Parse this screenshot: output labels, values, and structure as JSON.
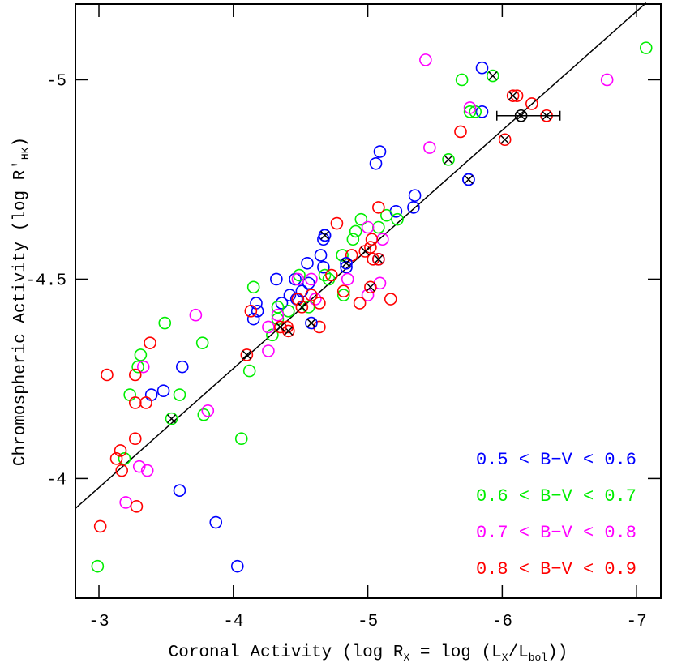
{
  "chart_data": {
    "type": "scatter",
    "x_label": [
      "Coronal Activity (log R",
      "X",
      " = log (L",
      "X",
      "/L",
      "bol",
      "))"
    ],
    "y_label": [
      "Chromospheric Activity (log R′",
      "HK",
      ")"
    ],
    "xlim": [
      -2.825,
      -7.18
    ],
    "ylim": [
      -3.7,
      -5.19
    ],
    "xticks": [
      -3,
      -4,
      -5,
      -6,
      -7
    ],
    "yticks": [
      -5,
      -4.5,
      -4
    ],
    "legend": "lower right",
    "series": [
      {
        "name": "0.5 < B−V < 0.6",
        "color": "#0000ff",
        "marker": "circle",
        "x": [
          -5.85,
          -5.85,
          -5.09,
          -5.06,
          -5.35,
          -5.21,
          -5.34,
          -5.75,
          -5.08,
          -4.84,
          -4.65,
          -4.68,
          -4.67,
          -4.55,
          -4.32,
          -4.42,
          -4.51,
          -4.56,
          -4.47,
          -4.17,
          -4.18,
          -4.15,
          -4.36,
          -3.62,
          -3.48,
          -3.39,
          -3.6,
          -3.87,
          -4.03,
          -4.67,
          -4.46
        ],
        "y": [
          -5.03,
          -4.92,
          -4.82,
          -4.79,
          -4.71,
          -4.67,
          -4.68,
          -4.75,
          -4.55,
          -4.53,
          -4.56,
          -4.61,
          -4.6,
          -4.54,
          -4.5,
          -4.46,
          -4.47,
          -4.49,
          -4.45,
          -4.44,
          -4.42,
          -4.4,
          -4.44,
          -4.28,
          -4.22,
          -4.21,
          -3.97,
          -3.89,
          -3.78,
          -4.53,
          -4.5
        ]
      },
      {
        "name": "0.6 < B−V < 0.7",
        "color": "#00ee00",
        "marker": "circle",
        "x": [
          -7.07,
          -5.7,
          -5.76,
          -5.14,
          -5.22,
          -5.08,
          -4.95,
          -4.91,
          -4.89,
          -4.81,
          -4.68,
          -4.71,
          -4.49,
          -4.15,
          -4.33,
          -4.29,
          -4.12,
          -3.77,
          -3.49,
          -3.31,
          -3.29,
          -3.23,
          -3.6,
          -3.78,
          -4.06,
          -3.19,
          -2.99,
          -4.82,
          -4.41,
          -4.56,
          -4.33,
          -5.8
        ],
        "y": [
          -5.08,
          -5.0,
          -4.92,
          -4.66,
          -4.65,
          -4.63,
          -4.65,
          -4.62,
          -4.6,
          -4.56,
          -4.51,
          -4.5,
          -4.51,
          -4.48,
          -4.43,
          -4.36,
          -4.27,
          -4.34,
          -4.39,
          -4.31,
          -4.28,
          -4.21,
          -4.21,
          -4.16,
          -4.1,
          -4.05,
          -3.78,
          -4.46,
          -4.42,
          -4.43,
          -4.4,
          -4.92
        ]
      },
      {
        "name": "0.7 < B−V < 0.8",
        "color": "#ff00ff",
        "marker": "circle",
        "x": [
          -5.43,
          -6.78,
          -5.76,
          -5.46,
          -5.11,
          -5.0,
          -5.09,
          -5.0,
          -4.61,
          -4.48,
          -4.33,
          -4.26,
          -4.26,
          -3.72,
          -3.33,
          -3.81,
          -3.3,
          -3.36,
          -3.2,
          -4.58,
          -4.85
        ],
        "y": [
          -5.05,
          -5.0,
          -4.93,
          -4.83,
          -4.6,
          -4.63,
          -4.49,
          -4.46,
          -4.45,
          -4.5,
          -4.41,
          -4.38,
          -4.32,
          -4.41,
          -4.28,
          -4.17,
          -4.03,
          -4.02,
          -3.94,
          -4.5,
          -4.5
        ]
      },
      {
        "name": "0.8 < B−V < 0.9",
        "color": "#ff0000",
        "marker": "circle",
        "x": [
          -6.22,
          -6.11,
          -5.69,
          -5.08,
          -4.77,
          -4.88,
          -5.03,
          -5.02,
          -5.04,
          -4.73,
          -4.82,
          -5.17,
          -4.94,
          -4.64,
          -4.48,
          -4.64,
          -4.4,
          -4.13,
          -3.38,
          -3.27,
          -3.35,
          -3.27,
          -3.06,
          -3.27,
          -3.16,
          -3.13,
          -3.17,
          -3.28,
          -3.01,
          -4.58
        ],
        "y": [
          -4.94,
          -4.96,
          -4.87,
          -4.68,
          -4.64,
          -4.56,
          -4.6,
          -4.58,
          -4.55,
          -4.51,
          -4.47,
          -4.45,
          -4.44,
          -4.44,
          -4.45,
          -4.38,
          -4.38,
          -4.42,
          -4.34,
          -4.19,
          -4.19,
          -4.26,
          -4.26,
          -4.1,
          -4.07,
          -4.05,
          -4.02,
          -3.93,
          -3.88,
          -4.46
        ]
      },
      {
        "color": "#0000ff",
        "marker": "circle-x",
        "x": [
          -4.68,
          -5.75,
          -4.84,
          -4.58
        ],
        "y": [
          -4.61,
          -4.75,
          -4.54,
          -4.39
        ]
      },
      {
        "color": "#00ee00",
        "marker": "circle-x",
        "x": [
          -5.93,
          -5.6,
          -3.54
        ],
        "y": [
          -5.01,
          -4.8,
          -4.15
        ]
      },
      {
        "color": "#ff0000",
        "marker": "circle-x",
        "x": [
          -6.08,
          -6.33,
          -6.02,
          -4.1,
          -5.02,
          -5.08,
          -4.98,
          -4.41,
          -4.51,
          -4.35
        ],
        "y": [
          -4.96,
          -4.91,
          -4.85,
          -4.31,
          -4.48,
          -4.55,
          -4.57,
          -4.37,
          -4.43,
          -4.38
        ]
      },
      {
        "color": "#000000",
        "marker": "circle-x",
        "x": [
          -6.14
        ],
        "y": [
          -4.91
        ],
        "xerr_minus": [
          0.18
        ],
        "xerr_plus": [
          0.29
        ]
      }
    ],
    "fit_line": {
      "color": "#000000",
      "x": [
        -2.825,
        -7.07
      ],
      "y": [
        -3.925,
        -5.193
      ]
    }
  }
}
